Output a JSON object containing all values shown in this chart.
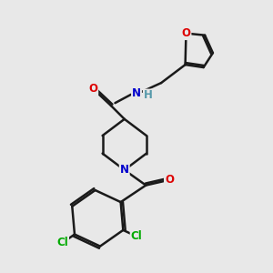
{
  "bg_color": "#e8e8e8",
  "bond_color": "#1a1a1a",
  "bond_width": 1.8,
  "atom_colors": {
    "O": "#dd0000",
    "N": "#0000cc",
    "Cl": "#00aa00",
    "H": "#5599aa"
  },
  "font_size": 8.5,
  "figsize": [
    3.0,
    3.0
  ],
  "dpi": 100,
  "xlim": [
    0,
    10
  ],
  "ylim": [
    0,
    10
  ]
}
